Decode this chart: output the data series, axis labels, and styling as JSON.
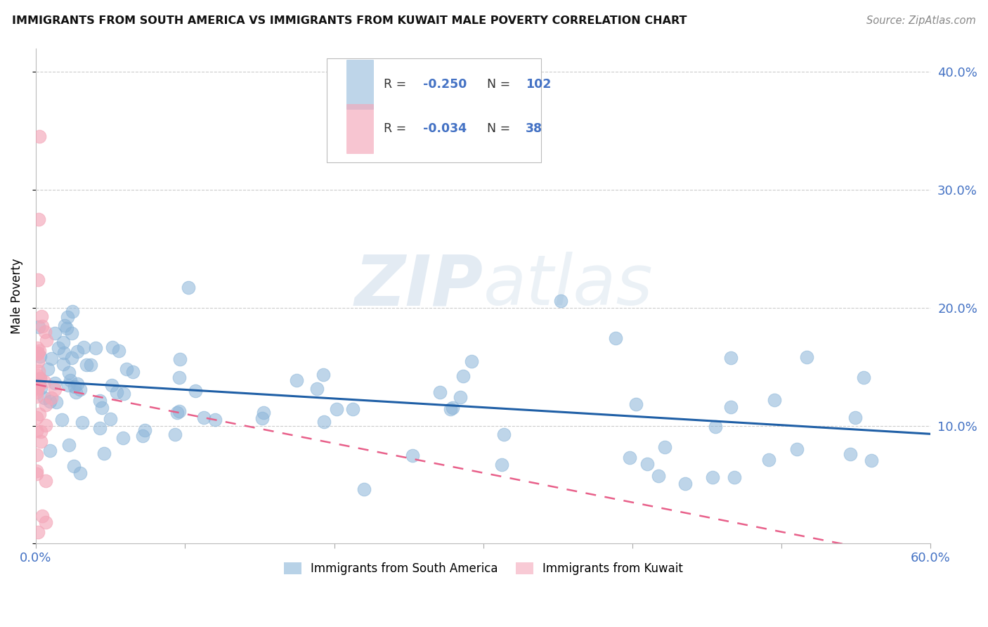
{
  "title": "IMMIGRANTS FROM SOUTH AMERICA VS IMMIGRANTS FROM KUWAIT MALE POVERTY CORRELATION CHART",
  "source": "Source: ZipAtlas.com",
  "ylabel": "Male Poverty",
  "xlim": [
    0.0,
    0.6
  ],
  "ylim": [
    0.0,
    0.42
  ],
  "blue_color": "#8ab4d8",
  "pink_color": "#f4a7b9",
  "blue_line_color": "#1f5fa6",
  "pink_line_color": "#e8608a",
  "background_color": "#ffffff",
  "grid_color": "#cccccc",
  "watermark_zip": "ZIP",
  "watermark_atlas": "atlas",
  "legend_r1": "-0.250",
  "legend_n1": "102",
  "legend_r2": "-0.034",
  "legend_n2": "38",
  "tick_color": "#4472c4",
  "title_fontsize": 12,
  "source_color": "#888888"
}
